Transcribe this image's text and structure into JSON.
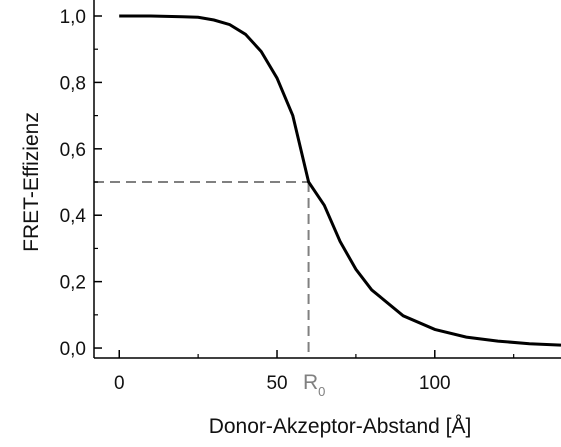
{
  "chart_data": {
    "type": "line",
    "title": "",
    "xlabel": "Donor-Akzeptor-Abstand [Å]",
    "ylabel": "FRET-Effizienz",
    "xlim": [
      -8,
      140
    ],
    "ylim": [
      -0.03,
      1.0
    ],
    "x_ticks": [
      0,
      50,
      100
    ],
    "x_tick_labels": [
      "0",
      "50",
      "100"
    ],
    "y_ticks": [
      0.0,
      0.2,
      0.4,
      0.6,
      0.8,
      1.0
    ],
    "y_tick_labels": [
      "0,0",
      "0,2",
      "0,4",
      "0,6",
      "0,8",
      "1,0"
    ],
    "grid": false,
    "series": [
      {
        "x": [
          0,
          10,
          20,
          25,
          30,
          35,
          40,
          45,
          50,
          55,
          60,
          65,
          70,
          75,
          80,
          90,
          100,
          110,
          120,
          130,
          140
        ],
        "y": [
          1.0,
          1.0,
          0.998,
          0.996,
          0.988,
          0.974,
          0.945,
          0.893,
          0.813,
          0.7,
          0.5,
          0.43,
          0.321,
          0.237,
          0.175,
          0.097,
          0.056,
          0.033,
          0.021,
          0.013,
          0.009
        ]
      }
    ],
    "color": "#000000",
    "annotation": {
      "label": "R",
      "subscript": "0",
      "x": 60,
      "y": 0.5,
      "line_color": "#808080",
      "line_style": "dashed"
    }
  }
}
